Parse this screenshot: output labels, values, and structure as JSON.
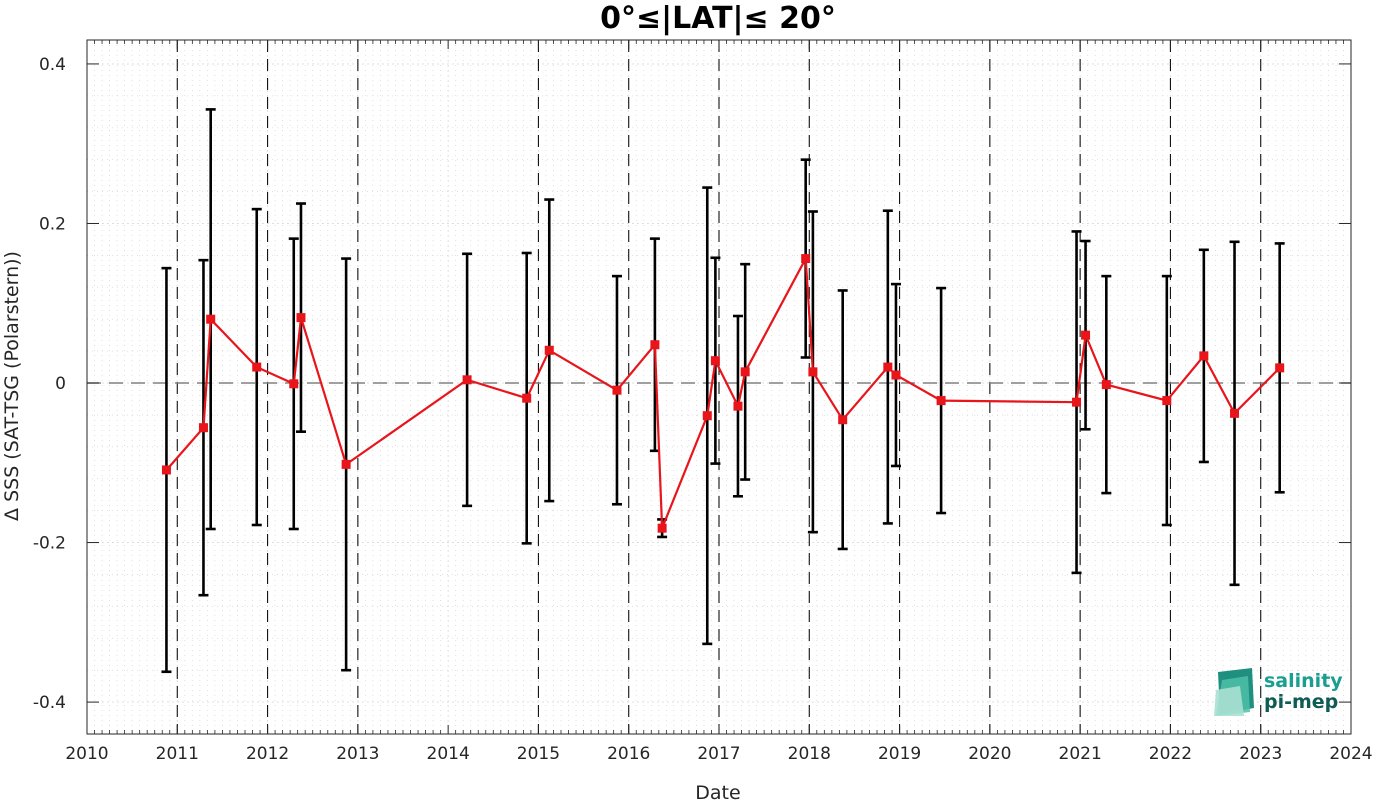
{
  "chart_data": {
    "type": "line",
    "title": "0°≤|LAT|≤ 20°",
    "xlabel": "Date",
    "ylabel": "Δ SSS (SAT-TSG (Polarstern))",
    "xlim": [
      2010,
      2024
    ],
    "ylim": [
      -0.44,
      0.43
    ],
    "x_ticks": [
      2010,
      2011,
      2012,
      2013,
      2014,
      2015,
      2016,
      2017,
      2018,
      2019,
      2020,
      2021,
      2022,
      2023,
      2024
    ],
    "x_tick_labels": [
      "2010",
      "2011",
      "2012",
      "2013",
      "2014",
      "2015",
      "2016",
      "2017",
      "2018",
      "2019",
      "2020",
      "2021",
      "2022",
      "2023",
      "2024"
    ],
    "y_ticks": [
      -0.4,
      -0.2,
      0,
      0.2,
      0.4
    ],
    "y_tick_labels": [
      "-0.4",
      "-0.2",
      "0",
      "0.2",
      "0.4"
    ],
    "grid": true,
    "zero_line": 0,
    "year_boundary_lines": [
      2011,
      2012,
      2013,
      2015,
      2016,
      2017,
      2018,
      2019,
      2020,
      2021,
      2022,
      2023
    ],
    "series": [
      {
        "color": "#e8151b",
        "errorbar_color": "#000000",
        "marker": "square",
        "points": [
          {
            "x": 2010.88,
            "y": -0.109,
            "err": 0.253
          },
          {
            "x": 2011.29,
            "y": -0.056,
            "err": 0.21
          },
          {
            "x": 2011.37,
            "y": 0.08,
            "err": 0.263
          },
          {
            "x": 2011.88,
            "y": 0.02,
            "err": 0.198
          },
          {
            "x": 2012.29,
            "y": -0.001,
            "err": 0.182
          },
          {
            "x": 2012.37,
            "y": 0.082,
            "err": 0.143
          },
          {
            "x": 2012.87,
            "y": -0.102,
            "err": 0.258
          },
          {
            "x": 2014.21,
            "y": 0.004,
            "err": 0.158
          },
          {
            "x": 2014.87,
            "y": -0.019,
            "err": 0.182
          },
          {
            "x": 2015.12,
            "y": 0.041,
            "err": 0.189
          },
          {
            "x": 2015.87,
            "y": -0.009,
            "err": 0.143
          },
          {
            "x": 2016.29,
            "y": 0.048,
            "err": 0.133
          },
          {
            "x": 2016.37,
            "y": -0.182,
            "err": 0.011
          },
          {
            "x": 2016.87,
            "y": -0.041,
            "err": 0.286
          },
          {
            "x": 2016.96,
            "y": 0.028,
            "err": 0.129
          },
          {
            "x": 2017.21,
            "y": -0.029,
            "err": 0.113
          },
          {
            "x": 2017.29,
            "y": 0.014,
            "err": 0.135
          },
          {
            "x": 2017.96,
            "y": 0.156,
            "err": 0.124
          },
          {
            "x": 2018.04,
            "y": 0.014,
            "err": 0.201
          },
          {
            "x": 2018.37,
            "y": -0.046,
            "err": 0.162
          },
          {
            "x": 2018.87,
            "y": 0.02,
            "err": 0.196
          },
          {
            "x": 2018.96,
            "y": 0.01,
            "err": 0.114
          },
          {
            "x": 2019.46,
            "y": -0.022,
            "err": 0.141
          },
          {
            "x": 2020.96,
            "y": -0.024,
            "err": 0.214
          },
          {
            "x": 2021.06,
            "y": 0.06,
            "err": 0.118
          },
          {
            "x": 2021.29,
            "y": -0.002,
            "err": 0.136
          },
          {
            "x": 2021.96,
            "y": -0.022,
            "err": 0.156
          },
          {
            "x": 2022.37,
            "y": 0.034,
            "err": 0.133
          },
          {
            "x": 2022.71,
            "y": -0.038,
            "err": 0.215
          },
          {
            "x": 2023.21,
            "y": 0.019,
            "err": 0.156
          }
        ]
      }
    ]
  },
  "logo": {
    "line1": "salinity",
    "line2": "pi-mep",
    "color1": "#1a9e8f",
    "color2": "#0f5c55"
  }
}
